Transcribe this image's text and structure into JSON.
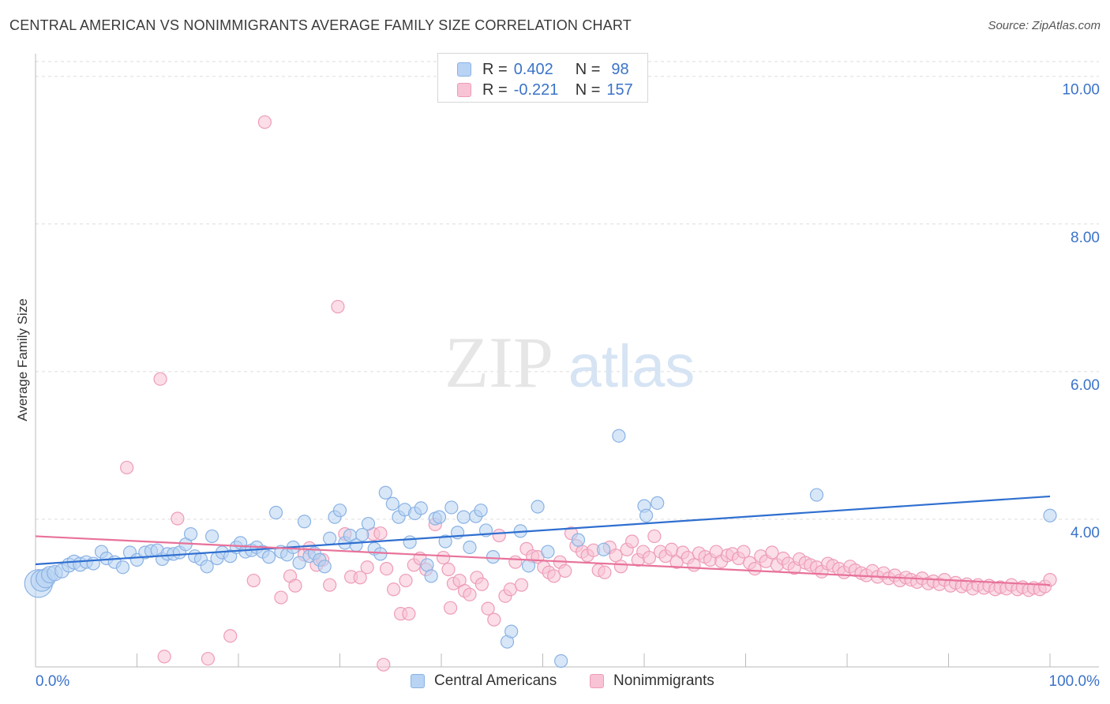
{
  "title": "CENTRAL AMERICAN VS NONIMMIGRANTS AVERAGE FAMILY SIZE CORRELATION CHART",
  "source": "Source: ZipAtlas.com",
  "watermark": {
    "zip": "ZIP",
    "atlas": "atlas"
  },
  "legend": {
    "r_label": "R =",
    "n_label": "N =",
    "rows": [
      {
        "r": "0.402",
        "n": "98"
      },
      {
        "r": "-0.221",
        "n": "157"
      }
    ]
  },
  "colors": {
    "blue_fill": "#b8d3f3",
    "blue_stroke": "#8ab2e4",
    "blue_line": "#2f6fd0",
    "pink_fill": "#f8c3d4",
    "pink_stroke": "#ee9cb8",
    "pink_line": "#e8729a",
    "axis_text": "#3b73c9",
    "grid": "#dddddd"
  },
  "chart_data": {
    "type": "scatter",
    "title": "CENTRAL AMERICAN VS NONIMMIGRANTS AVERAGE FAMILY SIZE CORRELATION CHART",
    "xlabel": "",
    "ylabel": "Average Family Size",
    "xlim": [
      0,
      100
    ],
    "ylim": [
      2.0,
      10.2
    ],
    "x_tick_labels": [
      "0.0%",
      "100.0%"
    ],
    "y_ticks": [
      4.0,
      6.0,
      8.0,
      10.0
    ],
    "y_tick_labels": [
      "4.00",
      "6.00",
      "8.00",
      "10.00"
    ],
    "grid": true,
    "legend_position": "top-center",
    "series": [
      {
        "name": "Central Americans",
        "r": 0.402,
        "n": 98,
        "trend": {
          "x": [
            0,
            100
          ],
          "y": [
            3.39,
            4.31
          ]
        },
        "points": [
          [
            0.3,
            3.13,
            2.2
          ],
          [
            0.6,
            3.17,
            1.7
          ],
          [
            1.0,
            3.2,
            1.5
          ],
          [
            1.4,
            3.25,
            1.3
          ],
          [
            1.9,
            3.27,
            1.2
          ],
          [
            2.6,
            3.3,
            1.1
          ],
          [
            3.3,
            3.38,
            1.1
          ],
          [
            3.8,
            3.42,
            1.1
          ],
          [
            4.4,
            3.39,
            1.1
          ],
          [
            5.0,
            3.42,
            1
          ],
          [
            5.7,
            3.4,
            1
          ],
          [
            6.5,
            3.56,
            1
          ],
          [
            7.0,
            3.47,
            1
          ],
          [
            7.8,
            3.42,
            1
          ],
          [
            8.6,
            3.35,
            1
          ],
          [
            9.3,
            3.55,
            1
          ],
          [
            10.0,
            3.45,
            1
          ],
          [
            10.8,
            3.55,
            1
          ],
          [
            11.4,
            3.57,
            1
          ],
          [
            12.0,
            3.58,
            1
          ],
          [
            12.5,
            3.46,
            1
          ],
          [
            13.0,
            3.53,
            1
          ],
          [
            13.6,
            3.53,
            1
          ],
          [
            14.2,
            3.55,
            1
          ],
          [
            14.8,
            3.66,
            1
          ],
          [
            15.3,
            3.8,
            1
          ],
          [
            15.7,
            3.5,
            1
          ],
          [
            16.3,
            3.46,
            1
          ],
          [
            16.9,
            3.36,
            1
          ],
          [
            17.4,
            3.77,
            1
          ],
          [
            17.9,
            3.47,
            1
          ],
          [
            18.4,
            3.55,
            1
          ],
          [
            19.2,
            3.5,
            1
          ],
          [
            19.8,
            3.62,
            1
          ],
          [
            20.2,
            3.68,
            1
          ],
          [
            20.7,
            3.56,
            1
          ],
          [
            21.3,
            3.58,
            1
          ],
          [
            21.8,
            3.62,
            1
          ],
          [
            22.4,
            3.56,
            1
          ],
          [
            23.0,
            3.49,
            1
          ],
          [
            23.7,
            4.09,
            1
          ],
          [
            24.2,
            3.56,
            1
          ],
          [
            24.8,
            3.52,
            1
          ],
          [
            25.4,
            3.62,
            1
          ],
          [
            26.0,
            3.41,
            1
          ],
          [
            26.5,
            3.97,
            1
          ],
          [
            27.0,
            3.5,
            1
          ],
          [
            27.5,
            3.54,
            1
          ],
          [
            28.0,
            3.45,
            1
          ],
          [
            28.5,
            3.36,
            1
          ],
          [
            29.0,
            3.74,
            1
          ],
          [
            29.5,
            4.03,
            1
          ],
          [
            30.0,
            4.12,
            1
          ],
          [
            30.5,
            3.68,
            1
          ],
          [
            31.0,
            3.78,
            1
          ],
          [
            31.6,
            3.65,
            1
          ],
          [
            32.2,
            3.79,
            1
          ],
          [
            32.8,
            3.94,
            1
          ],
          [
            33.4,
            3.6,
            1
          ],
          [
            34.0,
            3.53,
            1
          ],
          [
            34.5,
            4.36,
            1
          ],
          [
            35.2,
            4.21,
            1
          ],
          [
            35.8,
            4.03,
            1
          ],
          [
            36.4,
            4.13,
            1
          ],
          [
            36.9,
            3.69,
            1
          ],
          [
            37.4,
            4.08,
            1
          ],
          [
            38.0,
            4.15,
            1
          ],
          [
            38.6,
            3.38,
            1
          ],
          [
            39.0,
            3.23,
            1
          ],
          [
            39.4,
            4.01,
            1
          ],
          [
            39.8,
            4.03,
            1
          ],
          [
            40.4,
            3.7,
            1
          ],
          [
            41.0,
            4.16,
            1
          ],
          [
            41.6,
            3.82,
            1
          ],
          [
            42.2,
            4.03,
            1
          ],
          [
            42.8,
            3.62,
            1
          ],
          [
            43.4,
            4.04,
            1
          ],
          [
            43.9,
            4.12,
            1
          ],
          [
            44.4,
            3.85,
            1
          ],
          [
            45.1,
            3.49,
            1
          ],
          [
            46.5,
            2.34,
            1
          ],
          [
            46.9,
            2.48,
            1
          ],
          [
            47.8,
            3.84,
            1
          ],
          [
            48.6,
            3.37,
            1
          ],
          [
            49.5,
            4.17,
            1
          ],
          [
            50.5,
            3.56,
            1
          ],
          [
            51.8,
            2.08,
            1
          ],
          [
            53.5,
            3.72,
            1
          ],
          [
            56.0,
            3.59,
            1
          ],
          [
            57.5,
            5.13,
            1
          ],
          [
            60.0,
            4.18,
            1
          ],
          [
            60.2,
            4.05,
            1
          ],
          [
            61.3,
            4.22,
            1
          ],
          [
            77.0,
            4.33,
            1
          ],
          [
            100.0,
            4.05,
            1
          ]
        ]
      },
      {
        "name": "Nonimmigrants",
        "r": -0.221,
        "n": 157,
        "trend": {
          "x": [
            0,
            100
          ],
          "y": [
            3.77,
            3.11
          ]
        },
        "points": [
          [
            9.0,
            4.7,
            1
          ],
          [
            12.3,
            5.9,
            1
          ],
          [
            12.7,
            2.14,
            1
          ],
          [
            14.0,
            4.01,
            1
          ],
          [
            17.0,
            2.11,
            1
          ],
          [
            19.2,
            2.42,
            1
          ],
          [
            21.5,
            3.17,
            1
          ],
          [
            22.6,
            9.38,
            1
          ],
          [
            24.2,
            2.94,
            1
          ],
          [
            25.1,
            3.23,
            1
          ],
          [
            25.6,
            3.1,
            1
          ],
          [
            26.5,
            3.52,
            1
          ],
          [
            27.0,
            3.61,
            1
          ],
          [
            27.7,
            3.38,
            1
          ],
          [
            28.3,
            3.45,
            1
          ],
          [
            29.0,
            3.11,
            1
          ],
          [
            29.8,
            6.88,
            1
          ],
          [
            30.5,
            3.8,
            1
          ],
          [
            31.1,
            3.22,
            1
          ],
          [
            32.0,
            3.21,
            1
          ],
          [
            32.7,
            3.35,
            1
          ],
          [
            33.3,
            3.8,
            1
          ],
          [
            34.0,
            3.81,
            1
          ],
          [
            34.6,
            3.33,
            1
          ],
          [
            35.3,
            3.05,
            1
          ],
          [
            36.0,
            2.72,
            1
          ],
          [
            36.5,
            3.17,
            1
          ],
          [
            37.3,
            3.38,
            1
          ],
          [
            37.9,
            3.47,
            1
          ],
          [
            38.5,
            3.32,
            1
          ],
          [
            39.4,
            3.93,
            1
          ],
          [
            40.2,
            3.48,
            1
          ],
          [
            40.7,
            3.32,
            1
          ],
          [
            41.2,
            3.13,
            1
          ],
          [
            41.8,
            3.17,
            1
          ],
          [
            42.3,
            3.03,
            1
          ],
          [
            42.8,
            2.98,
            1
          ],
          [
            43.5,
            3.21,
            1
          ],
          [
            44.0,
            3.12,
            1
          ],
          [
            44.6,
            2.79,
            1
          ],
          [
            45.2,
            2.64,
            1
          ],
          [
            45.7,
            3.78,
            1
          ],
          [
            46.3,
            2.96,
            1
          ],
          [
            46.8,
            3.05,
            1
          ],
          [
            47.3,
            3.42,
            1
          ],
          [
            47.9,
            3.11,
            1
          ],
          [
            48.4,
            3.6,
            1
          ],
          [
            49.0,
            3.5,
            1
          ],
          [
            49.5,
            3.49,
            1
          ],
          [
            50.1,
            3.35,
            1
          ],
          [
            50.6,
            3.28,
            1
          ],
          [
            51.1,
            3.23,
            1
          ],
          [
            51.7,
            3.42,
            1
          ],
          [
            52.2,
            3.3,
            1
          ],
          [
            52.8,
            3.81,
            1
          ],
          [
            53.3,
            3.64,
            1
          ],
          [
            53.9,
            3.56,
            1
          ],
          [
            54.4,
            3.51,
            1
          ],
          [
            55.0,
            3.58,
            1
          ],
          [
            55.5,
            3.31,
            1
          ],
          [
            56.1,
            3.28,
            1
          ],
          [
            56.6,
            3.62,
            1
          ],
          [
            57.2,
            3.51,
            1
          ],
          [
            57.7,
            3.36,
            1
          ],
          [
            58.3,
            3.59,
            1
          ],
          [
            58.8,
            3.7,
            1
          ],
          [
            59.4,
            3.45,
            1
          ],
          [
            59.9,
            3.56,
            1
          ],
          [
            60.5,
            3.48,
            1
          ],
          [
            61.0,
            3.77,
            1
          ],
          [
            61.6,
            3.56,
            1
          ],
          [
            62.1,
            3.5,
            1
          ],
          [
            62.7,
            3.59,
            1
          ],
          [
            63.2,
            3.42,
            1
          ],
          [
            63.8,
            3.55,
            1
          ],
          [
            64.3,
            3.48,
            1
          ],
          [
            64.9,
            3.38,
            1
          ],
          [
            65.4,
            3.54,
            1
          ],
          [
            66.0,
            3.49,
            1
          ],
          [
            66.5,
            3.45,
            1
          ],
          [
            67.1,
            3.56,
            1
          ],
          [
            67.6,
            3.43,
            1
          ],
          [
            68.2,
            3.51,
            1
          ],
          [
            68.7,
            3.53,
            1
          ],
          [
            69.3,
            3.47,
            1
          ],
          [
            69.8,
            3.56,
            1
          ],
          [
            70.4,
            3.41,
            1
          ],
          [
            70.9,
            3.33,
            1
          ],
          [
            71.5,
            3.5,
            1
          ],
          [
            72.0,
            3.43,
            1
          ],
          [
            72.6,
            3.55,
            1
          ],
          [
            73.1,
            3.38,
            1
          ],
          [
            73.7,
            3.47,
            1
          ],
          [
            74.2,
            3.4,
            1
          ],
          [
            74.8,
            3.34,
            1
          ],
          [
            75.3,
            3.46,
            1
          ],
          [
            75.9,
            3.41,
            1
          ],
          [
            76.4,
            3.38,
            1
          ],
          [
            77.0,
            3.35,
            1
          ],
          [
            77.5,
            3.29,
            1
          ],
          [
            78.1,
            3.4,
            1
          ],
          [
            78.6,
            3.37,
            1
          ],
          [
            79.2,
            3.33,
            1
          ],
          [
            79.7,
            3.28,
            1
          ],
          [
            80.3,
            3.36,
            1
          ],
          [
            80.8,
            3.31,
            1
          ],
          [
            81.4,
            3.27,
            1
          ],
          [
            81.9,
            3.24,
            1
          ],
          [
            82.5,
            3.3,
            1
          ],
          [
            83.0,
            3.22,
            1
          ],
          [
            83.6,
            3.27,
            1
          ],
          [
            84.1,
            3.2,
            1
          ],
          [
            84.7,
            3.24,
            1
          ],
          [
            85.2,
            3.17,
            1
          ],
          [
            85.8,
            3.21,
            1
          ],
          [
            86.3,
            3.18,
            1
          ],
          [
            86.9,
            3.15,
            1
          ],
          [
            87.4,
            3.2,
            1
          ],
          [
            88.0,
            3.13,
            1
          ],
          [
            88.5,
            3.16,
            1
          ],
          [
            89.1,
            3.12,
            1
          ],
          [
            89.6,
            3.18,
            1
          ],
          [
            90.2,
            3.1,
            1
          ],
          [
            90.7,
            3.14,
            1
          ],
          [
            91.3,
            3.09,
            1
          ],
          [
            91.8,
            3.12,
            1
          ],
          [
            92.4,
            3.06,
            1
          ],
          [
            92.9,
            3.11,
            1
          ],
          [
            93.5,
            3.07,
            1
          ],
          [
            94.0,
            3.1,
            1
          ],
          [
            94.6,
            3.05,
            1
          ],
          [
            95.1,
            3.08,
            1
          ],
          [
            95.7,
            3.06,
            1
          ],
          [
            96.2,
            3.11,
            1
          ],
          [
            96.8,
            3.05,
            1
          ],
          [
            97.3,
            3.08,
            1
          ],
          [
            97.9,
            3.04,
            1
          ],
          [
            98.4,
            3.07,
            1
          ],
          [
            99.0,
            3.05,
            1
          ],
          [
            99.5,
            3.09,
            1
          ],
          [
            100.0,
            3.18,
            1
          ],
          [
            34.3,
            2.03,
            1
          ],
          [
            36.8,
            2.72,
            1
          ],
          [
            40.9,
            2.8,
            1
          ]
        ]
      }
    ]
  },
  "bottom_legend": [
    "Central Americans",
    "Nonimmigrants"
  ]
}
